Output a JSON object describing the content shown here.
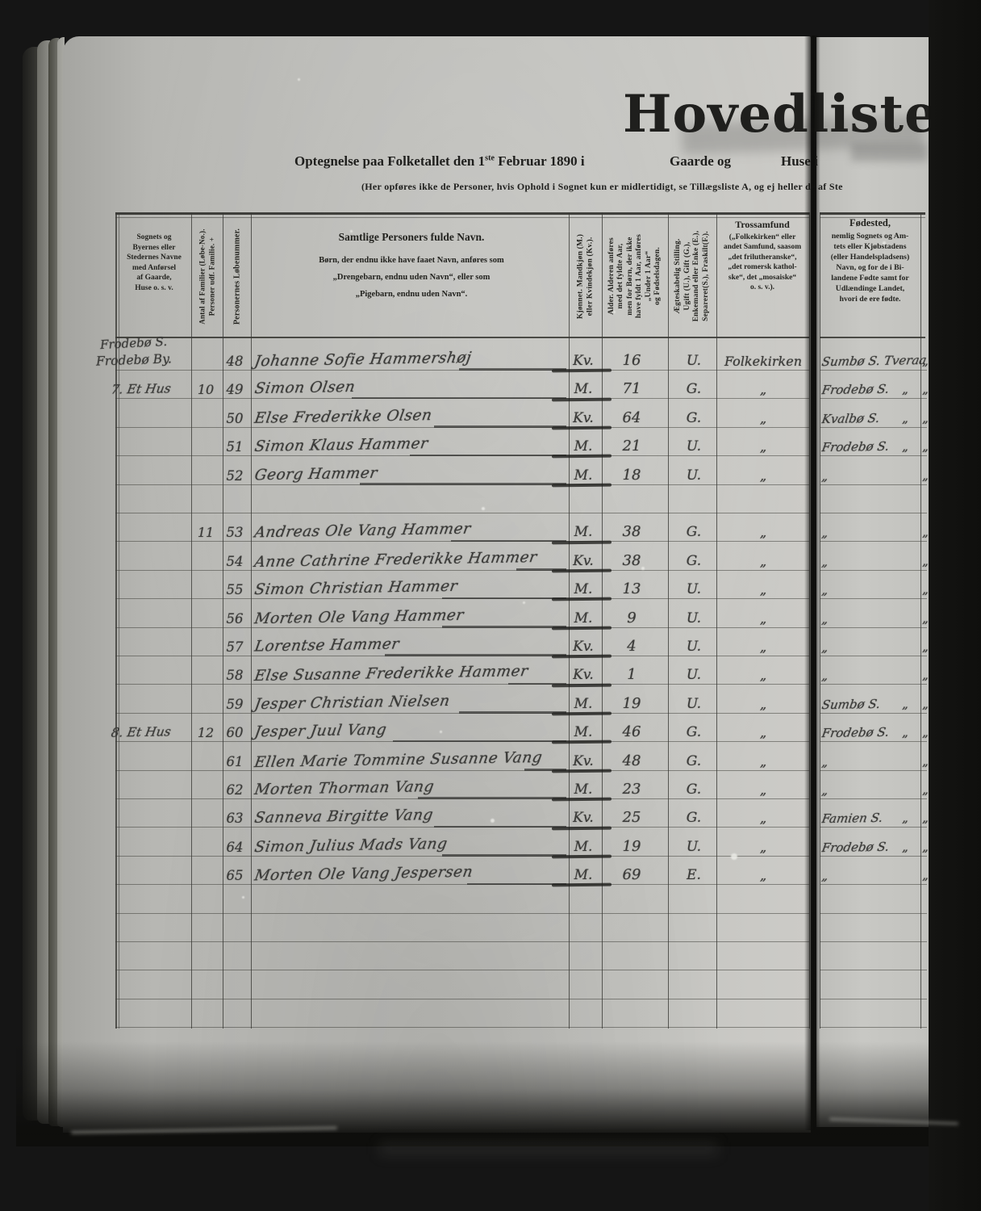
{
  "page": {
    "title": "Hovedliste",
    "subtitle": {
      "pre": "Optegnelse paa Folketallet den 1",
      "sup": "ste",
      "post": " Februar 1890 i",
      "gaarde": "Gaarde og",
      "huse": "Huse i"
    },
    "note": "(Her opføres ikke de Personer, hvis Ophold i Sognet kun er midlertidigt, se Tillægsliste A, og ej heller de af Ste"
  },
  "table": {
    "headers": {
      "place": [
        "Sognets og",
        "Byernes eller",
        "Stedernes Navne",
        "med Anførsel",
        "af Gaarde,",
        "Huse o. s. v."
      ],
      "antal": [
        "Antal af Familier (Løbe-No.).",
        "Personer udf. Familie. +"
      ],
      "lobenr": [
        "Personernes Løbenummer."
      ],
      "name_title": "Samtlige Personers fulde Navn.",
      "name_sub": [
        "Børn, der endnu ikke have faaet Navn, anføres som",
        "„Drengebarn, endnu uden Navn“, eller som",
        "„Pigebarn, endnu uden Navn“."
      ],
      "kjon": [
        "Kjønnet.  Mandkjøn (M.)",
        "eller Kvindekjøn (Kv.)."
      ],
      "alder": [
        "Alder.  Alderen anføres",
        "med det fyldte Aar,",
        "men for Børn, der ikke",
        "have fyldt 1 Aar, anføres",
        "„Under 1 Aar“",
        "og Fødselsdagen."
      ],
      "stilling": [
        "Ægteskabelig Stilling.",
        "Ugift (U.), Gift (G.),",
        "Enkemand eller Enke (E.),",
        "Separeret(S.), Fraskilt(F.)."
      ],
      "trossamfund_title": "Trossamfund",
      "trossamfund": [
        "(„Folkekirken“ eller",
        "andet Samfund, saasom",
        "„det frilutheranske“,",
        "„det romersk kathol-",
        "ske“, det „mosaiske“",
        "o. s. v.)."
      ],
      "fodested_title": "Fødested,",
      "fodested": [
        "nemlig Sognets og Am-",
        "tets eller Kjøbstadens",
        "(eller Handelspladsens)",
        "Navn, og for de i Bi-",
        "landene Fødte samt for",
        "Udlændinge Landet,",
        "hvori de ere fødte."
      ]
    },
    "place_top": [
      "Frodebø S.",
      "Frodebø By."
    ],
    "rows": [
      {
        "no": "48",
        "name": "Johanne Sofie Hammershøj",
        "sex": "Kv.",
        "age": "16",
        "status": "U.",
        "faith": "Folkekirken",
        "birth": "Sumbø S. Tveraa",
        "edge": "„"
      },
      {
        "no": "49",
        "place": "7.  Et Hus",
        "antal": "10",
        "name": "Simon Olsen",
        "sex": "M.",
        "age": "71",
        "status": "G.",
        "faith": "„",
        "birth": "Frodebø S.",
        "edge": "„"
      },
      {
        "no": "50",
        "name": "Else Frederikke Olsen",
        "sex": "Kv.",
        "age": "64",
        "status": "G.",
        "faith": "„",
        "birth": "Kvalbø S.",
        "edge": "„"
      },
      {
        "no": "51",
        "name": "Simon Klaus Hammer",
        "sex": "M.",
        "age": "21",
        "status": "U.",
        "faith": "„",
        "birth": "Frodebø S.",
        "edge": "„"
      },
      {
        "no": "52",
        "name": "Georg Hammer",
        "sex": "M.",
        "age": "18",
        "status": "U.",
        "faith": "„",
        "birth": "„",
        "edge": "„"
      },
      {
        "no": "53",
        "gap": true,
        "antal": "11",
        "name": "Andreas Ole Vang Hammer",
        "sex": "M.",
        "age": "38",
        "status": "G.",
        "faith": "„",
        "birth": "„",
        "edge": "„"
      },
      {
        "no": "54",
        "name": "Anne Cathrine Frederikke Hammer",
        "sex": "Kv.",
        "age": "38",
        "status": "G.",
        "faith": "„",
        "birth": "„",
        "edge": "„"
      },
      {
        "no": "55",
        "name": "Simon Christian Hammer",
        "sex": "M.",
        "age": "13",
        "status": "U.",
        "faith": "„",
        "birth": "„",
        "edge": "„"
      },
      {
        "no": "56",
        "name": "Morten Ole Vang Hammer",
        "sex": "M.",
        "age": "9",
        "status": "U.",
        "faith": "„",
        "birth": "„",
        "edge": "„"
      },
      {
        "no": "57",
        "name": "Lorentse Hammer",
        "sex": "Kv.",
        "age": "4",
        "status": "U.",
        "faith": "„",
        "birth": "„",
        "edge": "„"
      },
      {
        "no": "58",
        "name": "Else Susanne Frederikke Hammer",
        "sex": "Kv.",
        "age": "1",
        "status": "U.",
        "faith": "„",
        "birth": "„",
        "edge": "„"
      },
      {
        "no": "59",
        "name": "Jesper Christian Nielsen",
        "sex": "M.",
        "age": "19",
        "status": "U.",
        "faith": "„",
        "birth": "Sumbø S.",
        "edge": "„"
      },
      {
        "no": "60",
        "place": "8.  Et Hus",
        "antal": "12",
        "name": "Jesper Juul Vang",
        "sex": "M.",
        "age": "46",
        "status": "G.",
        "faith": "„",
        "birth": "Frodebø S.",
        "edge": "„"
      },
      {
        "no": "61",
        "name": "Ellen Marie Tommine Susanne Vang",
        "sex": "Kv.",
        "age": "48",
        "status": "G.",
        "faith": "„",
        "birth": "„",
        "edge": "„"
      },
      {
        "no": "62",
        "name": "Morten Thorman Vang",
        "sex": "M.",
        "age": "23",
        "status": "G.",
        "faith": "„",
        "birth": "„",
        "edge": "„"
      },
      {
        "no": "63",
        "name": "Sanneva Birgitte Vang",
        "sex": "Kv.",
        "age": "25",
        "status": "G.",
        "faith": "„",
        "birth": "Famien S.",
        "edge": "„"
      },
      {
        "no": "64",
        "name": "Simon Julius Mads Vang",
        "sex": "M.",
        "age": "19",
        "status": "U.",
        "faith": "„",
        "birth": "Frodebø S.",
        "edge": "„"
      },
      {
        "no": "65",
        "name": "Morten Ole Vang Jespersen",
        "sex": "M.",
        "age": "69",
        "status": "E.",
        "faith": "„",
        "birth": "„",
        "edge": "„"
      }
    ]
  },
  "colors": {
    "paper": "#bcbcb8",
    "paper_sliver": "#c6c6c2",
    "ink_print": "#1f1f1d",
    "ink_hand": "#3a3a38",
    "background": "#121212"
  }
}
